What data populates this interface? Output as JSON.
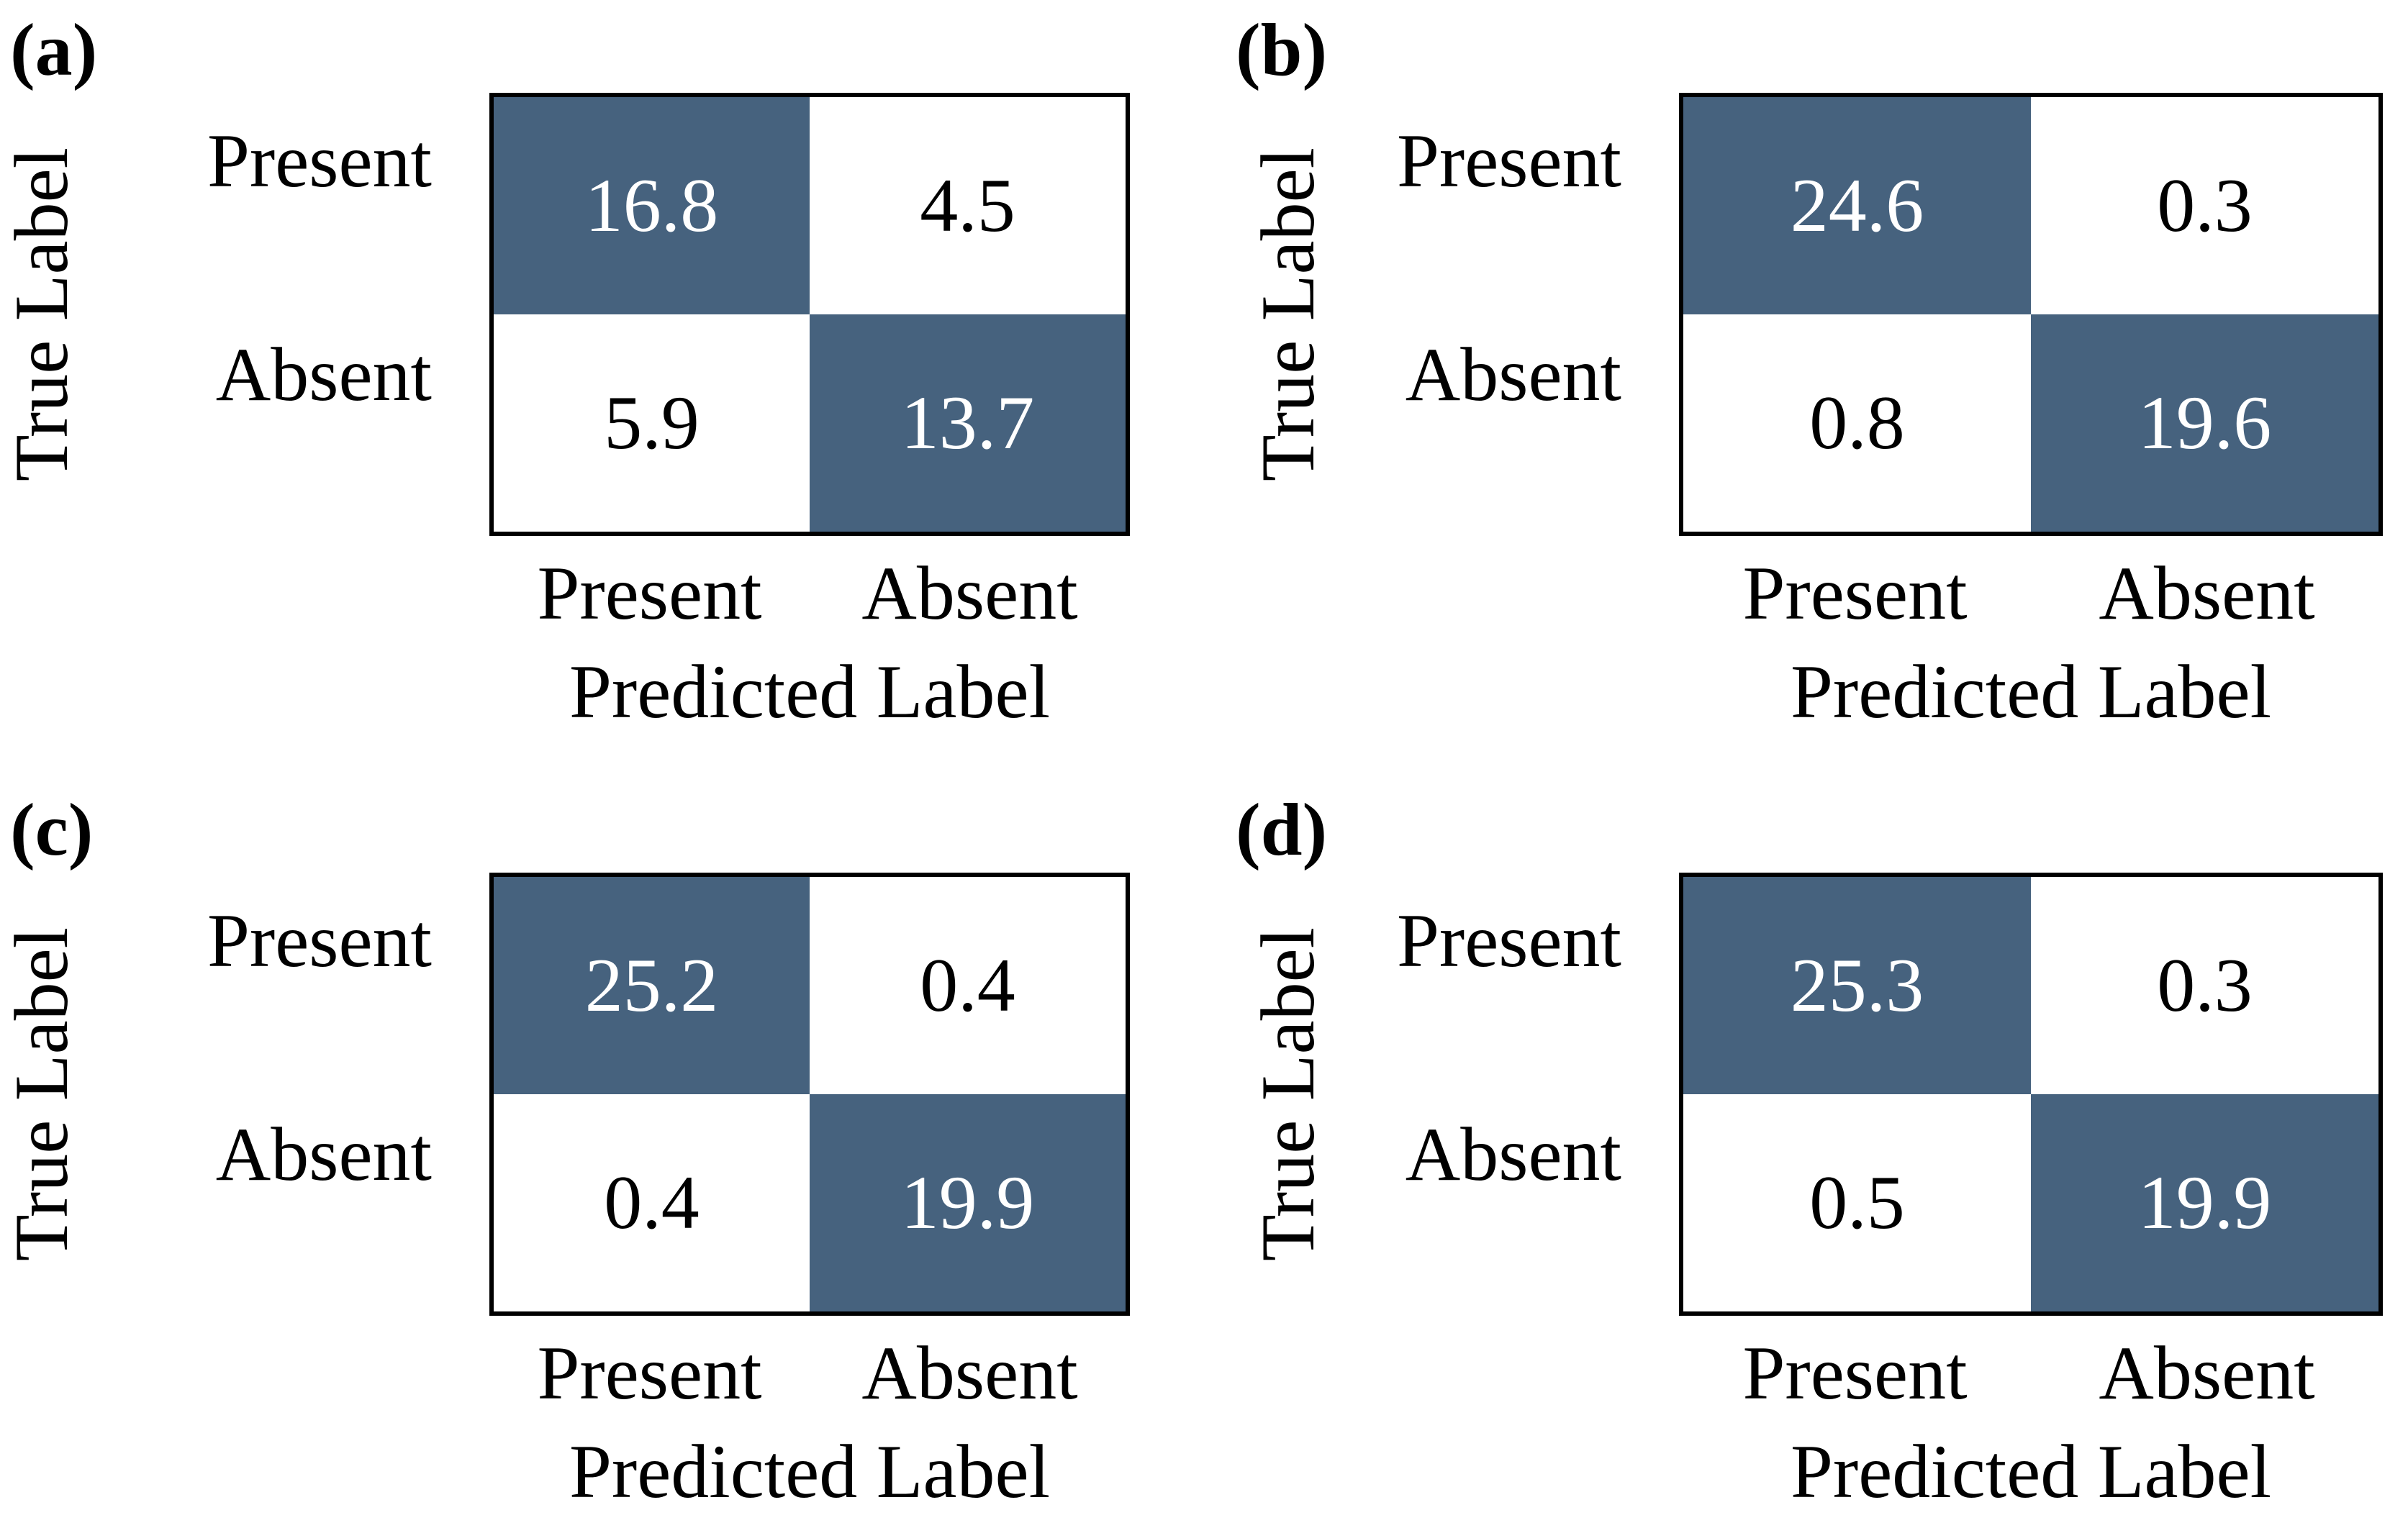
{
  "figure": {
    "axis": {
      "x_label": "Predicted Label",
      "y_label": "True Label"
    },
    "classes": [
      "Present",
      "Absent"
    ],
    "colors": {
      "diagonal_cell": "#46627e",
      "off_diagonal_cell": "#ffffff",
      "border": "#000000",
      "diagonal_text": "#ffffff",
      "off_diagonal_text": "#000000"
    },
    "panels": [
      {
        "label": "(a)",
        "matrix": [
          [
            "16.8",
            "4.5"
          ],
          [
            "5.9",
            "13.7"
          ]
        ]
      },
      {
        "label": "(b)",
        "matrix": [
          [
            "24.6",
            "0.3"
          ],
          [
            "0.8",
            "19.6"
          ]
        ]
      },
      {
        "label": "(c)",
        "matrix": [
          [
            "25.2",
            "0.4"
          ],
          [
            "0.4",
            "19.9"
          ]
        ]
      },
      {
        "label": "(d)",
        "matrix": [
          [
            "25.3",
            "0.3"
          ],
          [
            "0.5",
            "19.9"
          ]
        ]
      }
    ]
  },
  "chart_data": [
    {
      "type": "heatmap",
      "title": "(a)",
      "xlabel": "Predicted Label",
      "ylabel": "True Label",
      "x_categories": [
        "Present",
        "Absent"
      ],
      "y_categories": [
        "Present",
        "Absent"
      ],
      "values": [
        [
          16.8,
          4.5
        ],
        [
          5.9,
          13.7
        ]
      ],
      "cell_colors": [
        [
          "#46627e",
          "#ffffff"
        ],
        [
          "#ffffff",
          "#46627e"
        ]
      ],
      "legend": "none",
      "grid": false
    },
    {
      "type": "heatmap",
      "title": "(b)",
      "xlabel": "Predicted Label",
      "ylabel": "True Label",
      "x_categories": [
        "Present",
        "Absent"
      ],
      "y_categories": [
        "Present",
        "Absent"
      ],
      "values": [
        [
          24.6,
          0.3
        ],
        [
          0.8,
          19.6
        ]
      ],
      "cell_colors": [
        [
          "#46627e",
          "#ffffff"
        ],
        [
          "#ffffff",
          "#46627e"
        ]
      ],
      "legend": "none",
      "grid": false
    },
    {
      "type": "heatmap",
      "title": "(c)",
      "xlabel": "Predicted Label",
      "ylabel": "True Label",
      "x_categories": [
        "Present",
        "Absent"
      ],
      "y_categories": [
        "Present",
        "Absent"
      ],
      "values": [
        [
          25.2,
          0.4
        ],
        [
          0.4,
          19.9
        ]
      ],
      "cell_colors": [
        [
          "#46627e",
          "#ffffff"
        ],
        [
          "#ffffff",
          "#46627e"
        ]
      ],
      "legend": "none",
      "grid": false
    },
    {
      "type": "heatmap",
      "title": "(d)",
      "xlabel": "Predicted Label",
      "ylabel": "True Label",
      "x_categories": [
        "Present",
        "Absent"
      ],
      "y_categories": [
        "Present",
        "Absent"
      ],
      "values": [
        [
          25.3,
          0.3
        ],
        [
          0.5,
          19.9
        ]
      ],
      "cell_colors": [
        [
          "#46627e",
          "#ffffff"
        ],
        [
          "#ffffff",
          "#46627e"
        ]
      ],
      "legend": "none",
      "grid": false
    }
  ]
}
